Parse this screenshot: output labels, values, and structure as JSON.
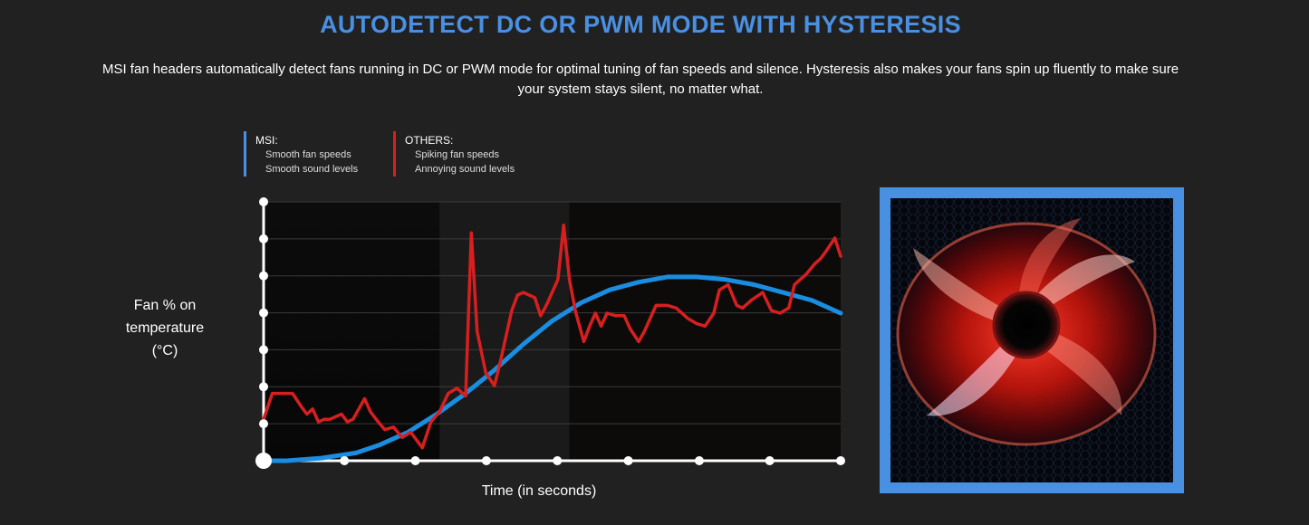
{
  "header": {
    "title": "AUTODETECT DC OR PWM MODE WITH HYSTERESIS",
    "description": "MSI fan headers automatically detect fans running in DC or PWM mode for optimal tuning of fan speeds and silence. Hysteresis also makes your fans spin up fluently to make sure your system stays silent, no matter what."
  },
  "legend": {
    "msi": {
      "title": "MSI:",
      "line1": "Smooth fan speeds",
      "line2": "Smooth sound levels",
      "color": "#4a90e2"
    },
    "others": {
      "title": "OTHERS:",
      "line1": "Spiking fan speeds",
      "line2": "Annoying sound levels",
      "color": "#d81f1f"
    }
  },
  "chart_data": {
    "type": "line",
    "xlabel": "Time (in seconds)",
    "ylabel": "Fan % on temperature (°C)",
    "xlim": [
      0,
      100
    ],
    "ylim": [
      0,
      100
    ],
    "grid": true,
    "legend_position": "top-left",
    "series": [
      {
        "name": "MSI",
        "color": "#1a8de0",
        "points": [
          [
            0,
            0
          ],
          [
            4,
            0
          ],
          [
            10,
            1
          ],
          [
            16,
            3
          ],
          [
            20,
            6
          ],
          [
            25,
            11
          ],
          [
            30,
            18
          ],
          [
            35,
            26
          ],
          [
            40,
            35
          ],
          [
            45,
            45
          ],
          [
            50,
            54
          ],
          [
            55,
            61
          ],
          [
            60,
            66
          ],
          [
            65,
            69
          ],
          [
            70,
            71
          ],
          [
            75,
            71
          ],
          [
            80,
            70
          ],
          [
            85,
            68
          ],
          [
            90,
            65
          ],
          [
            95,
            62
          ],
          [
            100,
            57
          ]
        ]
      },
      {
        "name": "OTHERS",
        "color": "#d81f1f",
        "points": [
          [
            0,
            16
          ],
          [
            1.5,
            26
          ],
          [
            3.5,
            26
          ],
          [
            5,
            26
          ],
          [
            6.5,
            21
          ],
          [
            7.5,
            18
          ],
          [
            8.5,
            20
          ],
          [
            9.5,
            15
          ],
          [
            10.5,
            16
          ],
          [
            11.5,
            16
          ],
          [
            13.5,
            18
          ],
          [
            14.5,
            15
          ],
          [
            15.5,
            16
          ],
          [
            17.5,
            24
          ],
          [
            18.5,
            19
          ],
          [
            19.5,
            16
          ],
          [
            21,
            12
          ],
          [
            22.5,
            13
          ],
          [
            24,
            9
          ],
          [
            25.5,
            11
          ],
          [
            26.5,
            8
          ],
          [
            27.5,
            5
          ],
          [
            29,
            15
          ],
          [
            30.5,
            19
          ],
          [
            32,
            26
          ],
          [
            33.5,
            28
          ],
          [
            35,
            25
          ],
          [
            36,
            88
          ],
          [
            37,
            50
          ],
          [
            38.5,
            34
          ],
          [
            40,
            29
          ],
          [
            41,
            38
          ],
          [
            43,
            58
          ],
          [
            44,
            64
          ],
          [
            45,
            65
          ],
          [
            47,
            63
          ],
          [
            48,
            56
          ],
          [
            49,
            60
          ],
          [
            51,
            70
          ],
          [
            52,
            91
          ],
          [
            53,
            70
          ],
          [
            54,
            58
          ],
          [
            55.5,
            46
          ],
          [
            56.5,
            52
          ],
          [
            57.5,
            57
          ],
          [
            58.5,
            52
          ],
          [
            59.5,
            57
          ],
          [
            61,
            56
          ],
          [
            62.5,
            56
          ],
          [
            63.5,
            51
          ],
          [
            65,
            46
          ],
          [
            66,
            50
          ],
          [
            67,
            55
          ],
          [
            68,
            60
          ],
          [
            70,
            60
          ],
          [
            71.5,
            59
          ],
          [
            73.5,
            55
          ],
          [
            75,
            53
          ],
          [
            76.5,
            52
          ],
          [
            78,
            57
          ],
          [
            79,
            66
          ],
          [
            80.5,
            68
          ],
          [
            82,
            60
          ],
          [
            83,
            59
          ],
          [
            84.5,
            62
          ],
          [
            86.5,
            65
          ],
          [
            88,
            58
          ],
          [
            89.5,
            57
          ],
          [
            91,
            59
          ],
          [
            92,
            68
          ],
          [
            94,
            72
          ],
          [
            95.5,
            76
          ],
          [
            96.5,
            78
          ],
          [
            97.5,
            81
          ],
          [
            99,
            86
          ],
          [
            100,
            79
          ]
        ]
      }
    ]
  }
}
